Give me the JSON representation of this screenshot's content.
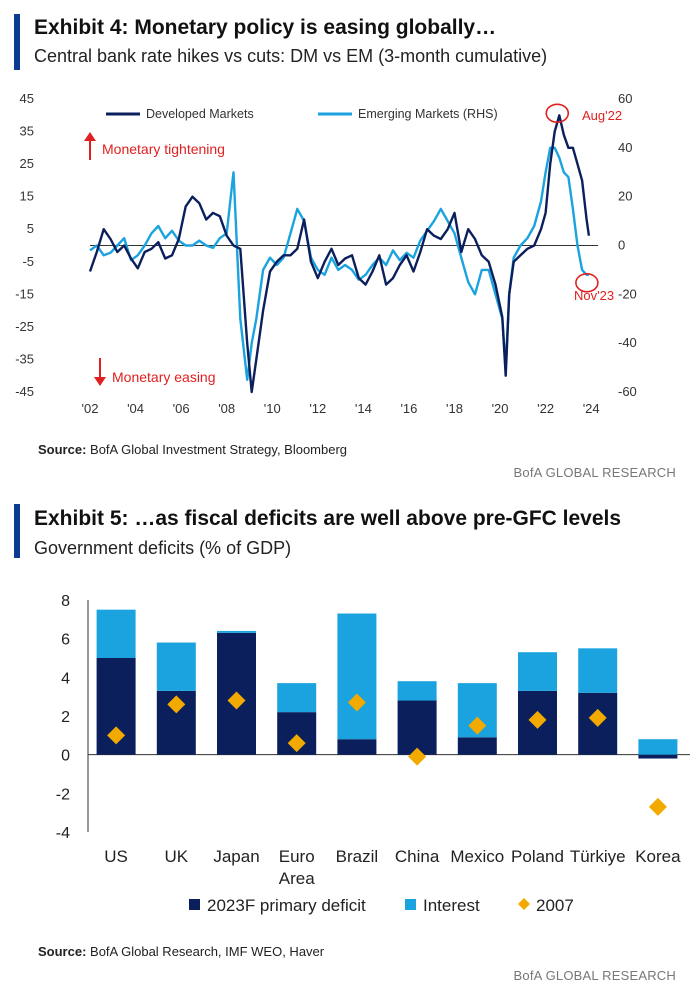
{
  "exhibit4": {
    "title": "Exhibit 4: Monetary policy is easing globally…",
    "subtitle": "Central bank rate hikes vs cuts: DM vs EM (3-month cumulative)",
    "source_label": "Source:",
    "source_text": "BofA Global Investment Strategy, Bloomberg",
    "brand": "BofA GLOBAL RESEARCH",
    "annotations": {
      "tightening": "Monetary tightening",
      "easing": "Monetary easing",
      "peak": "Aug'22",
      "latest": "Nov'23"
    }
  },
  "exhibit5": {
    "title": "Exhibit 5: …as fiscal deficits are well above pre-GFC levels",
    "subtitle": "Government deficits (% of GDP)",
    "source_label": "Source:",
    "source_text": "BofA Global Research, IMF WEO, Haver",
    "brand": "BofA GLOBAL RESEARCH"
  },
  "colors": {
    "dm": "#0b1f5c",
    "em": "#1aa3df",
    "primary": "#0b1f5c",
    "interest": "#1aa3df",
    "marker2007": "#f2a900",
    "annotation": "#e02020",
    "accent": "#0a3d91"
  },
  "chart_data": [
    {
      "type": "line",
      "legend": [
        "Developed Markets",
        "Emerging Markets (RHS)"
      ],
      "legend_placement": "top",
      "x_ticks": [
        "'02",
        "'04",
        "'06",
        "'08",
        "'10",
        "'12",
        "'14",
        "'16",
        "'18",
        "'20",
        "'22",
        "'24"
      ],
      "x_range": [
        2002,
        2024.3
      ],
      "y_left": {
        "ticks": [
          "45",
          "35",
          "25",
          "15",
          "5",
          "-5",
          "-15",
          "-25",
          "-35",
          "-45"
        ],
        "range": [
          -45,
          45
        ]
      },
      "y_right": {
        "ticks": [
          "60",
          "40",
          "20",
          "0",
          "-20",
          "-40",
          "-60"
        ],
        "range": [
          -60,
          60
        ]
      },
      "series": [
        {
          "name": "Developed Markets",
          "axis": "left",
          "x": [
            2002.0,
            2002.3,
            2002.6,
            2002.9,
            2003.2,
            2003.5,
            2003.8,
            2004.1,
            2004.4,
            2004.7,
            2005.0,
            2005.3,
            2005.6,
            2005.9,
            2006.2,
            2006.5,
            2006.8,
            2007.1,
            2007.4,
            2007.7,
            2008.0,
            2008.3,
            2008.6,
            2008.9,
            2009.1,
            2009.3,
            2009.6,
            2009.9,
            2010.2,
            2010.5,
            2010.8,
            2011.1,
            2011.4,
            2011.7,
            2012.0,
            2012.3,
            2012.6,
            2012.9,
            2013.2,
            2013.5,
            2013.8,
            2014.1,
            2014.4,
            2014.7,
            2015.0,
            2015.3,
            2015.6,
            2015.9,
            2016.2,
            2016.5,
            2016.8,
            2017.1,
            2017.4,
            2017.7,
            2018.0,
            2018.3,
            2018.6,
            2018.9,
            2019.2,
            2019.5,
            2019.8,
            2020.1,
            2020.25,
            2020.4,
            2020.6,
            2020.9,
            2021.2,
            2021.5,
            2021.8,
            2022.0,
            2022.2,
            2022.4,
            2022.6,
            2022.8,
            2023.0,
            2023.2,
            2023.4,
            2023.6,
            2023.8,
            2023.9
          ],
          "values": [
            -8,
            -2,
            5,
            2,
            -2,
            0,
            -4,
            -7,
            -2,
            -1,
            1,
            -4,
            -3,
            2,
            12,
            15,
            13,
            8,
            10,
            9,
            3,
            0,
            -1,
            -30,
            -45,
            -35,
            -20,
            -8,
            -5,
            -3,
            -3,
            -1,
            8,
            -5,
            -10,
            -5,
            -1,
            -6,
            -4,
            -3,
            -10,
            -12,
            -8,
            -3,
            -12,
            -10,
            -6,
            -3,
            -8,
            -2,
            5,
            3,
            2,
            5,
            10,
            -2,
            5,
            2,
            -3,
            -5,
            -12,
            -22,
            -40,
            -15,
            -5,
            -3,
            -1,
            0,
            5,
            10,
            25,
            35,
            40,
            34,
            30,
            30,
            25,
            20,
            8,
            3
          ]
        },
        {
          "name": "Emerging Markets (RHS)",
          "axis": "right",
          "x": [
            2002.0,
            2002.3,
            2002.6,
            2002.9,
            2003.2,
            2003.5,
            2003.8,
            2004.1,
            2004.4,
            2004.7,
            2005.0,
            2005.3,
            2005.6,
            2005.9,
            2006.2,
            2006.5,
            2006.8,
            2007.1,
            2007.4,
            2007.7,
            2008.0,
            2008.3,
            2008.6,
            2008.9,
            2009.1,
            2009.3,
            2009.6,
            2009.9,
            2010.2,
            2010.5,
            2010.8,
            2011.1,
            2011.4,
            2011.7,
            2012.0,
            2012.3,
            2012.6,
            2012.9,
            2013.2,
            2013.5,
            2013.8,
            2014.1,
            2014.4,
            2014.7,
            2015.0,
            2015.3,
            2015.6,
            2015.9,
            2016.2,
            2016.5,
            2016.8,
            2017.1,
            2017.4,
            2017.7,
            2018.0,
            2018.3,
            2018.6,
            2018.9,
            2019.2,
            2019.5,
            2019.8,
            2020.1,
            2020.25,
            2020.4,
            2020.6,
            2020.9,
            2021.2,
            2021.5,
            2021.8,
            2022.0,
            2022.2,
            2022.4,
            2022.6,
            2022.8,
            2023.0,
            2023.2,
            2023.4,
            2023.6,
            2023.8,
            2023.9
          ],
          "values": [
            -2,
            0,
            -4,
            -3,
            0,
            3,
            -6,
            -4,
            0,
            5,
            8,
            3,
            6,
            2,
            0,
            0,
            2,
            0,
            -1,
            3,
            5,
            30,
            -30,
            -55,
            -40,
            -30,
            -10,
            -5,
            -8,
            -5,
            5,
            15,
            10,
            -5,
            -10,
            -12,
            -5,
            -10,
            -8,
            -10,
            -14,
            -12,
            -8,
            -5,
            -8,
            -2,
            -6,
            -3,
            -5,
            2,
            6,
            10,
            15,
            10,
            5,
            -5,
            -15,
            -20,
            -10,
            -10,
            -20,
            -30,
            -50,
            -20,
            -5,
            0,
            3,
            8,
            18,
            30,
            40,
            40,
            36,
            30,
            28,
            15,
            0,
            -10,
            -12,
            -12
          ]
        }
      ],
      "annotations": [
        {
          "text": "Aug'22",
          "x": 2022.6
        },
        {
          "text": "Nov'23",
          "x": 2023.9
        }
      ],
      "grid": false
    },
    {
      "type": "bar",
      "stacked": true,
      "categories": [
        "US",
        "UK",
        "Japan",
        "Euro Area",
        "Brazil",
        "China",
        "Mexico",
        "Poland",
        "Türkiye",
        "Korea"
      ],
      "category_lines": [
        [
          "US"
        ],
        [
          "UK"
        ],
        [
          "Japan"
        ],
        [
          "Euro",
          "Area"
        ],
        [
          "Brazil"
        ],
        [
          "China"
        ],
        [
          "Mexico"
        ],
        [
          "Poland"
        ],
        [
          "Türkiye"
        ],
        [
          "Korea"
        ]
      ],
      "y_ticks": [
        "8",
        "6",
        "4",
        "2",
        "0",
        "-2",
        "-4"
      ],
      "ylim": [
        -4,
        8
      ],
      "legend_placement": "bottom",
      "series": [
        {
          "name": "2023F primary deficit",
          "kind": "bar",
          "values": [
            5.0,
            3.3,
            6.3,
            2.2,
            0.8,
            2.8,
            0.9,
            3.3,
            3.2,
            -0.2
          ]
        },
        {
          "name": "Interest",
          "kind": "bar",
          "values": [
            2.5,
            2.5,
            0.1,
            1.5,
            6.5,
            1.0,
            2.8,
            2.0,
            2.3,
            0.8
          ]
        },
        {
          "name": "2007",
          "kind": "marker",
          "values": [
            1.0,
            2.6,
            2.8,
            0.6,
            2.7,
            -0.1,
            1.5,
            1.8,
            1.9,
            -2.7
          ]
        }
      ],
      "grid": false
    }
  ]
}
